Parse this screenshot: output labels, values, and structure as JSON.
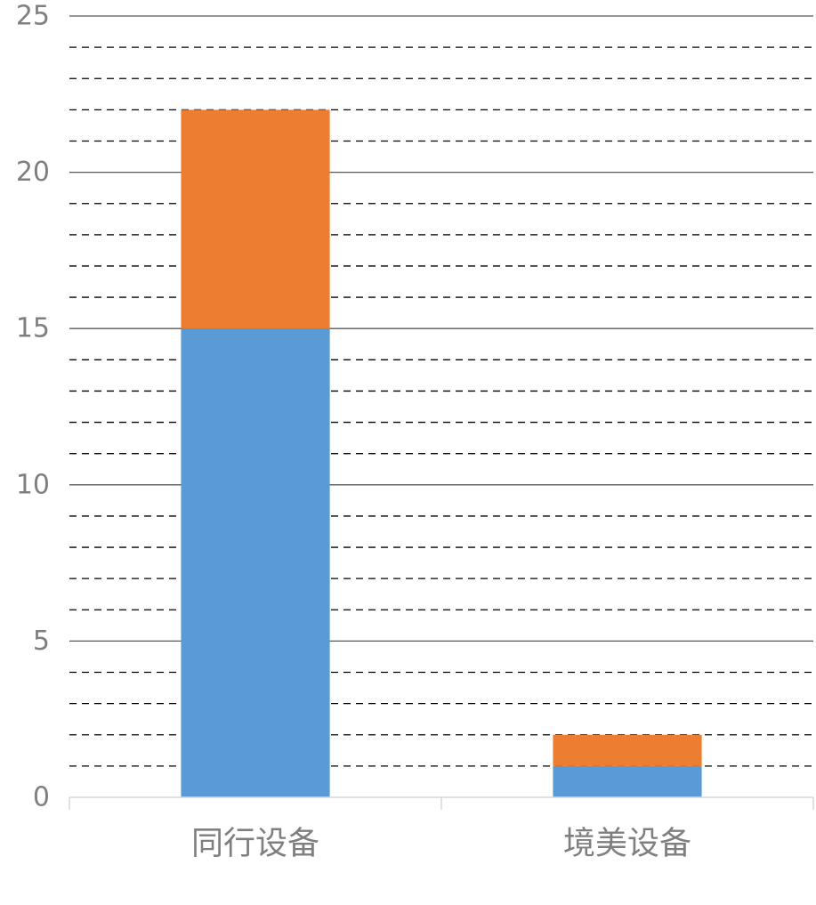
{
  "chart_data": {
    "type": "bar",
    "stacked": true,
    "categories": [
      "同行设备",
      "境美设备"
    ],
    "series": [
      {
        "color": "#5b9bd5",
        "values": [
          15,
          1
        ]
      },
      {
        "color": "#ed7d31",
        "values": [
          7,
          1
        ]
      }
    ],
    "ylim": [
      0,
      25
    ],
    "y_ticks": [
      0,
      5,
      10,
      15,
      20,
      25
    ],
    "y_tick_labels": [
      "0",
      "5",
      "10",
      "15",
      "20",
      "25"
    ],
    "minor_grid_step": 1,
    "major_gridlines": true,
    "minor_gridlines": "dashed",
    "legend": "none",
    "title": "",
    "xlabel": "",
    "ylabel": ""
  }
}
